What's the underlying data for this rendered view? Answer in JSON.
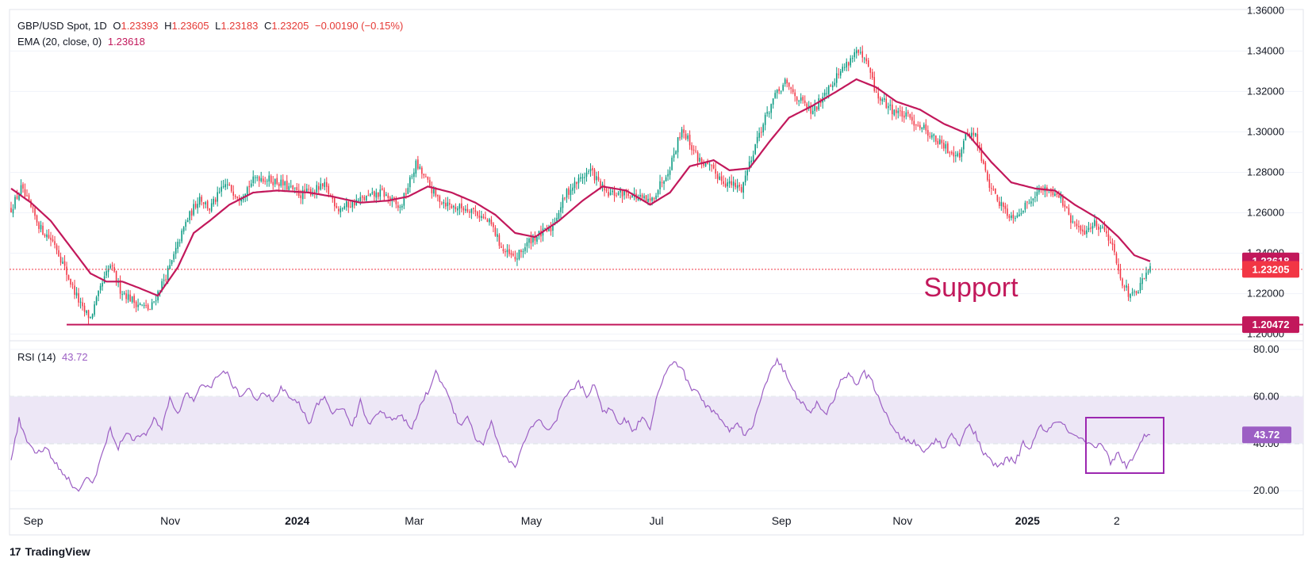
{
  "header": {
    "symbol": "GBP/USD Spot, 1D",
    "ohlc": {
      "o_label": "O",
      "o": "1.23393",
      "h_label": "H",
      "h": "1.23605",
      "l_label": "L",
      "l": "1.23183",
      "c_label": "C",
      "c": "1.23205",
      "change": "−0.00190 (−0.15%)"
    },
    "ema_label": "EMA (20, close, 0)",
    "ema_value": "1.23618",
    "rsi_label": "RSI (14)",
    "rsi_value": "43.72"
  },
  "annotations": {
    "support_text": "Support"
  },
  "brand": {
    "name": "TradingView"
  },
  "colors": {
    "up": "#089981",
    "down": "#f23645",
    "ema": "#c2185b",
    "support": "#c2185b",
    "rsi_line": "#9c5fc4",
    "rsi_band": "#ede7f6",
    "rsi_box": "#9c27b0",
    "price_line": "#f23645"
  },
  "chart_data": [
    {
      "type": "candlestick",
      "title": "GBP/USD Spot, 1D",
      "y_axis_ticks": [
        "1.36000",
        "1.34000",
        "1.32000",
        "1.30000",
        "1.28000",
        "1.26000",
        "1.24000",
        "1.22000",
        "1.20000"
      ],
      "ylim": [
        1.1975,
        1.3605
      ],
      "x_axis_ticks": [
        "Sep",
        "Nov",
        "2024",
        "Mar",
        "May",
        "Jul",
        "Sep",
        "Nov",
        "2025",
        "2"
      ],
      "price_labels": [
        {
          "label": "1.23618",
          "value": 1.23618,
          "role": "ema"
        },
        {
          "label": "1.23205",
          "value": 1.23205,
          "role": "last"
        },
        {
          "label": "1.20472",
          "value": 1.20472,
          "role": "support"
        }
      ],
      "support_level": 1.20472,
      "current_price": 1.23205,
      "ema_last": 1.23618,
      "close_anchors": [
        [
          0,
          1.262
        ],
        [
          5,
          1.272
        ],
        [
          15,
          1.252
        ],
        [
          22,
          1.245
        ],
        [
          28,
          1.23
        ],
        [
          36,
          1.212
        ],
        [
          40,
          1.208
        ],
        [
          46,
          1.225
        ],
        [
          50,
          1.234
        ],
        [
          55,
          1.222
        ],
        [
          62,
          1.216
        ],
        [
          70,
          1.212
        ],
        [
          76,
          1.225
        ],
        [
          80,
          1.233
        ],
        [
          88,
          1.255
        ],
        [
          95,
          1.268
        ],
        [
          100,
          1.262
        ],
        [
          108,
          1.274
        ],
        [
          115,
          1.268
        ],
        [
          124,
          1.278
        ],
        [
          135,
          1.275
        ],
        [
          146,
          1.269
        ],
        [
          158,
          1.273
        ],
        [
          165,
          1.262
        ],
        [
          175,
          1.266
        ],
        [
          187,
          1.27
        ],
        [
          196,
          1.262
        ],
        [
          204,
          1.284
        ],
        [
          208,
          1.278
        ],
        [
          214,
          1.268
        ],
        [
          222,
          1.263
        ],
        [
          232,
          1.262
        ],
        [
          242,
          1.254
        ],
        [
          248,
          1.241
        ],
        [
          254,
          1.237
        ],
        [
          262,
          1.247
        ],
        [
          272,
          1.252
        ],
        [
          280,
          1.27
        ],
        [
          288,
          1.278
        ],
        [
          292,
          1.281
        ],
        [
          300,
          1.269
        ],
        [
          310,
          1.27
        ],
        [
          322,
          1.265
        ],
        [
          332,
          1.283
        ],
        [
          338,
          1.302
        ],
        [
          346,
          1.287
        ],
        [
          352,
          1.282
        ],
        [
          360,
          1.275
        ],
        [
          368,
          1.272
        ],
        [
          376,
          1.297
        ],
        [
          384,
          1.316
        ],
        [
          390,
          1.324
        ],
        [
          398,
          1.315
        ],
        [
          404,
          1.309
        ],
        [
          410,
          1.32
        ],
        [
          418,
          1.33
        ],
        [
          426,
          1.34
        ],
        [
          432,
          1.332
        ],
        [
          436,
          1.318
        ],
        [
          444,
          1.311
        ],
        [
          452,
          1.307
        ],
        [
          460,
          1.302
        ],
        [
          466,
          1.296
        ],
        [
          472,
          1.291
        ],
        [
          478,
          1.289
        ],
        [
          482,
          1.3
        ],
        [
          486,
          1.298
        ],
        [
          492,
          1.276
        ],
        [
          498,
          1.265
        ],
        [
          504,
          1.258
        ],
        [
          510,
          1.262
        ],
        [
          516,
          1.27
        ],
        [
          522,
          1.272
        ],
        [
          528,
          1.269
        ],
        [
          534,
          1.256
        ],
        [
          540,
          1.25
        ],
        [
          546,
          1.255
        ],
        [
          552,
          1.251
        ],
        [
          556,
          1.24
        ],
        [
          560,
          1.226
        ],
        [
          564,
          1.218
        ],
        [
          568,
          1.222
        ],
        [
          572,
          1.229
        ],
        [
          574,
          1.232
        ]
      ],
      "ema_anchors": [
        [
          0,
          1.272
        ],
        [
          10,
          1.265
        ],
        [
          20,
          1.256
        ],
        [
          30,
          1.243
        ],
        [
          40,
          1.23
        ],
        [
          48,
          1.226
        ],
        [
          56,
          1.226
        ],
        [
          64,
          1.223
        ],
        [
          74,
          1.219
        ],
        [
          84,
          1.233
        ],
        [
          92,
          1.25
        ],
        [
          100,
          1.256
        ],
        [
          110,
          1.264
        ],
        [
          122,
          1.27
        ],
        [
          134,
          1.271
        ],
        [
          150,
          1.27
        ],
        [
          162,
          1.268
        ],
        [
          176,
          1.265
        ],
        [
          190,
          1.266
        ],
        [
          200,
          1.268
        ],
        [
          210,
          1.273
        ],
        [
          222,
          1.27
        ],
        [
          234,
          1.265
        ],
        [
          244,
          1.259
        ],
        [
          254,
          1.25
        ],
        [
          264,
          1.248
        ],
        [
          276,
          1.256
        ],
        [
          288,
          1.266
        ],
        [
          298,
          1.273
        ],
        [
          310,
          1.271
        ],
        [
          322,
          1.264
        ],
        [
          332,
          1.27
        ],
        [
          342,
          1.283
        ],
        [
          354,
          1.286
        ],
        [
          362,
          1.281
        ],
        [
          372,
          1.282
        ],
        [
          382,
          1.295
        ],
        [
          392,
          1.307
        ],
        [
          404,
          1.313
        ],
        [
          416,
          1.32
        ],
        [
          426,
          1.326
        ],
        [
          436,
          1.322
        ],
        [
          446,
          1.315
        ],
        [
          458,
          1.311
        ],
        [
          470,
          1.304
        ],
        [
          482,
          1.299
        ],
        [
          494,
          1.285
        ],
        [
          504,
          1.275
        ],
        [
          516,
          1.272
        ],
        [
          526,
          1.271
        ],
        [
          536,
          1.264
        ],
        [
          548,
          1.257
        ],
        [
          558,
          1.248
        ],
        [
          566,
          1.239
        ],
        [
          574,
          1.236
        ]
      ]
    },
    {
      "type": "line",
      "title": "RSI (14)",
      "y_axis_ticks": [
        "80.00",
        "60.00",
        "40.00",
        "20.00"
      ],
      "ylim": [
        13,
        83
      ],
      "band": [
        40,
        60
      ],
      "last_value": 43.72,
      "anchors": [
        [
          0,
          34
        ],
        [
          4,
          50
        ],
        [
          8,
          40
        ],
        [
          12,
          36
        ],
        [
          18,
          38
        ],
        [
          22,
          32
        ],
        [
          28,
          26
        ],
        [
          32,
          21
        ],
        [
          34,
          19
        ],
        [
          38,
          26
        ],
        [
          42,
          24
        ],
        [
          46,
          37
        ],
        [
          50,
          46
        ],
        [
          54,
          38
        ],
        [
          58,
          45
        ],
        [
          62,
          42
        ],
        [
          68,
          44
        ],
        [
          72,
          50
        ],
        [
          76,
          46
        ],
        [
          80,
          60
        ],
        [
          84,
          52
        ],
        [
          88,
          62
        ],
        [
          92,
          58
        ],
        [
          96,
          66
        ],
        [
          100,
          63
        ],
        [
          104,
          69
        ],
        [
          108,
          71
        ],
        [
          112,
          64
        ],
        [
          116,
          60
        ],
        [
          120,
          64
        ],
        [
          124,
          58
        ],
        [
          128,
          62
        ],
        [
          132,
          57
        ],
        [
          136,
          64
        ],
        [
          140,
          60
        ],
        [
          146,
          56
        ],
        [
          150,
          48
        ],
        [
          154,
          56
        ],
        [
          158,
          60
        ],
        [
          162,
          53
        ],
        [
          168,
          55
        ],
        [
          172,
          47
        ],
        [
          176,
          58
        ],
        [
          180,
          48
        ],
        [
          186,
          55
        ],
        [
          190,
          50
        ],
        [
          196,
          52
        ],
        [
          202,
          46
        ],
        [
          206,
          56
        ],
        [
          210,
          62
        ],
        [
          214,
          70
        ],
        [
          218,
          65
        ],
        [
          222,
          56
        ],
        [
          226,
          48
        ],
        [
          230,
          52
        ],
        [
          234,
          42
        ],
        [
          238,
          40
        ],
        [
          242,
          50
        ],
        [
          246,
          38
        ],
        [
          250,
          33
        ],
        [
          254,
          30
        ],
        [
          258,
          40
        ],
        [
          262,
          47
        ],
        [
          266,
          50
        ],
        [
          270,
          45
        ],
        [
          274,
          48
        ],
        [
          278,
          58
        ],
        [
          282,
          62
        ],
        [
          286,
          66
        ],
        [
          290,
          60
        ],
        [
          294,
          66
        ],
        [
          298,
          53
        ],
        [
          302,
          55
        ],
        [
          306,
          49
        ],
        [
          310,
          50
        ],
        [
          314,
          45
        ],
        [
          318,
          52
        ],
        [
          322,
          47
        ],
        [
          326,
          62
        ],
        [
          330,
          70
        ],
        [
          334,
          75
        ],
        [
          338,
          72
        ],
        [
          342,
          64
        ],
        [
          346,
          62
        ],
        [
          350,
          56
        ],
        [
          354,
          54
        ],
        [
          358,
          50
        ],
        [
          362,
          45
        ],
        [
          366,
          50
        ],
        [
          370,
          43
        ],
        [
          374,
          48
        ],
        [
          378,
          60
        ],
        [
          382,
          70
        ],
        [
          386,
          76
        ],
        [
          390,
          70
        ],
        [
          394,
          62
        ],
        [
          398,
          58
        ],
        [
          402,
          53
        ],
        [
          406,
          57
        ],
        [
          410,
          52
        ],
        [
          414,
          58
        ],
        [
          418,
          66
        ],
        [
          422,
          70
        ],
        [
          426,
          65
        ],
        [
          430,
          70
        ],
        [
          434,
          66
        ],
        [
          438,
          58
        ],
        [
          442,
          50
        ],
        [
          446,
          44
        ],
        [
          450,
          42
        ],
        [
          456,
          40
        ],
        [
          460,
          36
        ],
        [
          466,
          42
        ],
        [
          470,
          38
        ],
        [
          474,
          44
        ],
        [
          478,
          40
        ],
        [
          482,
          48
        ],
        [
          486,
          44
        ],
        [
          490,
          36
        ],
        [
          494,
          32
        ],
        [
          498,
          30
        ],
        [
          502,
          34
        ],
        [
          506,
          32
        ],
        [
          510,
          40
        ],
        [
          514,
          38
        ],
        [
          518,
          48
        ],
        [
          522,
          44
        ],
        [
          526,
          50
        ],
        [
          530,
          48
        ],
        [
          534,
          44
        ],
        [
          538,
          42
        ],
        [
          542,
          40
        ],
        [
          546,
          38
        ],
        [
          550,
          40
        ],
        [
          554,
          32
        ],
        [
          558,
          36
        ],
        [
          562,
          30
        ],
        [
          566,
          34
        ],
        [
          570,
          42
        ],
        [
          572,
          44
        ],
        [
          574,
          43.72
        ]
      ]
    }
  ]
}
